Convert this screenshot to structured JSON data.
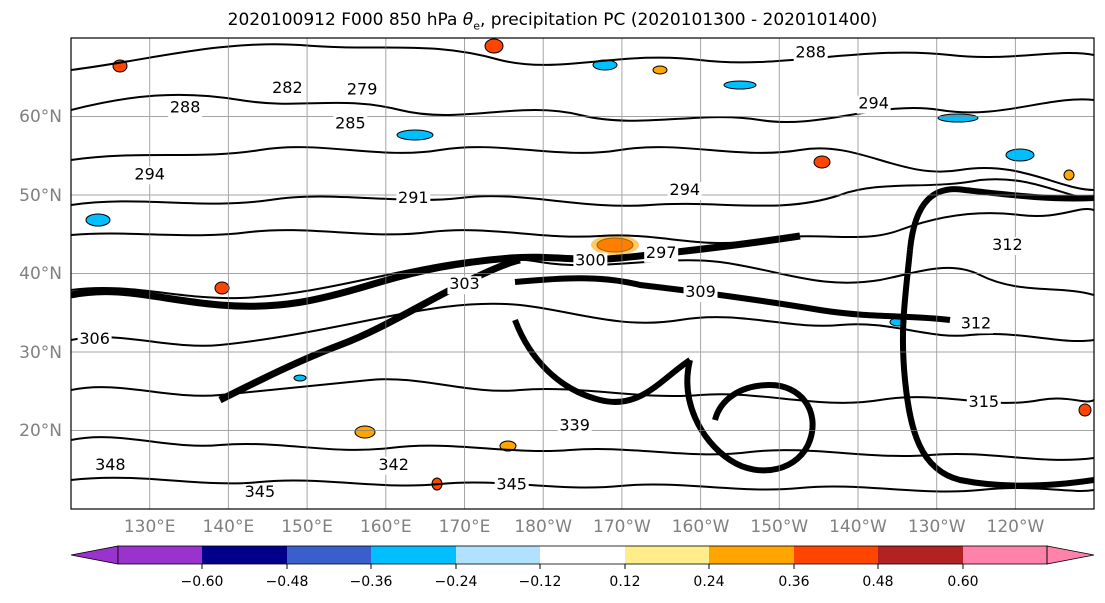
{
  "title": {
    "prefix": "2020100912 F000 850 hPa ",
    "theta_symbol": "θ",
    "theta_subscript": "e",
    "suffix": ", precipitation PC (2020101300 - 2020101400)"
  },
  "latitude_labels": [
    "60°N",
    "50°N",
    "40°N",
    "30°N",
    "20°N"
  ],
  "longitude_labels": [
    "130°E",
    "140°E",
    "150°E",
    "160°E",
    "170°E",
    "180°W",
    "170°W",
    "160°W",
    "150°W",
    "140°W",
    "130°W",
    "120°W"
  ],
  "map_extent": {
    "lon_min": 120,
    "lon_max": 250,
    "lat_min": 10,
    "lat_max": 70
  },
  "contour_labels": [
    {
      "text": "279",
      "lon": 157,
      "lat": 62.8
    },
    {
      "text": "282",
      "lon": 147.5,
      "lat": 63
    },
    {
      "text": "285",
      "lon": 155.5,
      "lat": 58.5
    },
    {
      "text": "288",
      "lon": 134.5,
      "lat": 60.5
    },
    {
      "text": "288",
      "lon": 214,
      "lat": 67.5
    },
    {
      "text": "291",
      "lon": 163.5,
      "lat": 49
    },
    {
      "text": "294",
      "lon": 130,
      "lat": 52
    },
    {
      "text": "294",
      "lon": 198,
      "lat": 50
    },
    {
      "text": "294",
      "lon": 222,
      "lat": 61
    },
    {
      "text": "297",
      "lon": 195,
      "lat": 42
    },
    {
      "text": "300",
      "lon": 186,
      "lat": 41
    },
    {
      "text": "303",
      "lon": 170,
      "lat": 38
    },
    {
      "text": "306",
      "lon": 123,
      "lat": 31
    },
    {
      "text": "309",
      "lon": 200,
      "lat": 37
    },
    {
      "text": "312",
      "lon": 235,
      "lat": 33
    },
    {
      "text": "312",
      "lon": 239,
      "lat": 43
    },
    {
      "text": "315",
      "lon": 236,
      "lat": 23
    },
    {
      "text": "339",
      "lon": 184,
      "lat": 20
    },
    {
      "text": "342",
      "lon": 161,
      "lat": 15
    },
    {
      "text": "345",
      "lon": 144,
      "lat": 11.5
    },
    {
      "text": "345",
      "lon": 176,
      "lat": 12.5
    },
    {
      "text": "348",
      "lon": 125,
      "lat": 15
    }
  ],
  "colorbar": {
    "colors": [
      "#9a32cd",
      "#00008b",
      "#3a5fcd",
      "#00bfff",
      "#b0e2ff",
      "#ffffff",
      "#ffec8b",
      "#ffa500",
      "#ff4500",
      "#b22222",
      "#ff82ab"
    ],
    "tick_labels": [
      "−0.60",
      "−0.48",
      "−0.36",
      "−0.24",
      "−0.12",
      "0.12",
      "0.24",
      "0.36",
      "0.48",
      "0.60"
    ]
  },
  "colors": {
    "contour": "#000000",
    "gridline": "#808080",
    "tick_label": "#808080"
  }
}
